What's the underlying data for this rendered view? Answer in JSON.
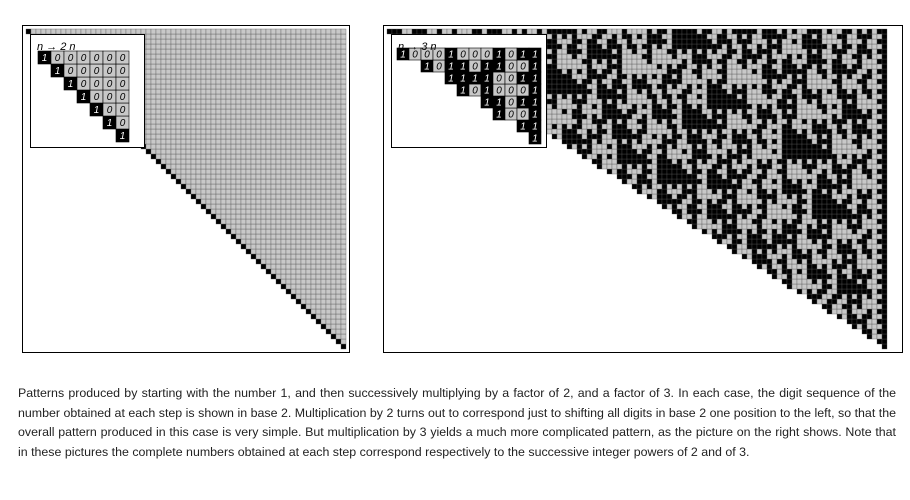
{
  "panels": [
    {
      "rule_label": "n → 2 n",
      "multiplier": 2
    },
    {
      "rule_label": "n → 3 n",
      "multiplier": 3
    }
  ],
  "caption": "Patterns produced by starting with the number 1, and then successively multiplying by a factor of 2, and a factor of 3. In each case, the digit sequence of the number obtained at each step is shown in base 2. Multiplication by 2 turns out to correspond just to shifting all digits in base 2 one position to the left, so that the overall pattern produced in this case is very simple. But multiplication by 3 yields a much more complicated pattern, as the picture on the right shows. Note that in these pictures the complete numbers obtained at each step correspond respectively to the successive integer powers of 2 and of 3.",
  "colors": {
    "one": "#000000",
    "zero": "#c8c8c8",
    "grid": "#555555",
    "background": "#ffffff"
  }
}
